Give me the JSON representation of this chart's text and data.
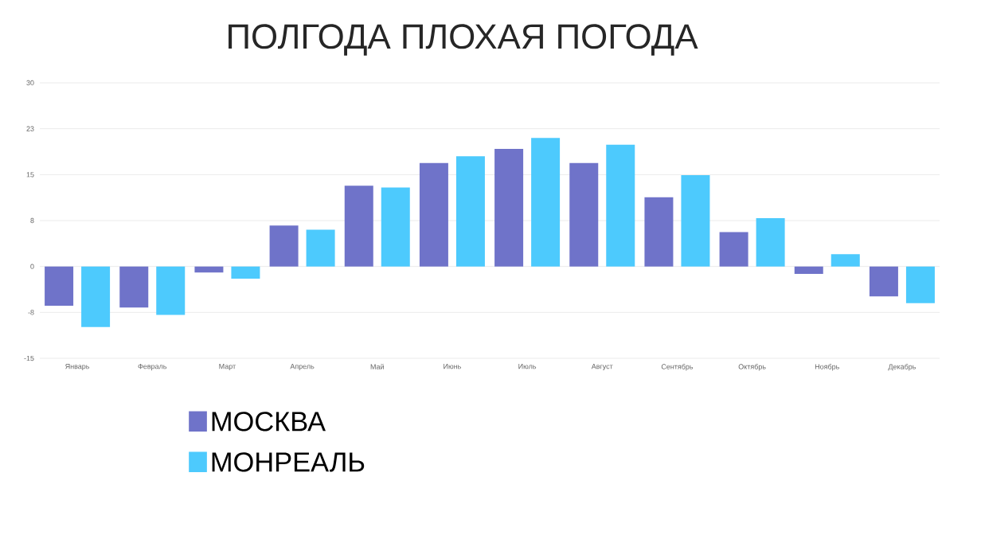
{
  "chart_data": {
    "type": "bar",
    "title": "ПОЛГОДА ПЛОХАЯ ПОГОДА",
    "categories": [
      "Январь",
      "Февраль",
      "Март",
      "Апрель",
      "Май",
      "Июнь",
      "Июль",
      "Август",
      "Сентябрь",
      "Октябрь",
      "Ноябрь",
      "Декабрь"
    ],
    "series": [
      {
        "name": "МОСКВА",
        "color": "#6f73c9",
        "values": [
          -6.4,
          -6.7,
          -1.0,
          6.7,
          13.2,
          16.9,
          19.2,
          16.9,
          11.3,
          5.6,
          -1.2,
          -4.9
        ]
      },
      {
        "name": "МОНРЕАЛЬ",
        "color": "#4dcafd",
        "values": [
          -9.9,
          -7.9,
          -2.0,
          6.0,
          12.9,
          18.0,
          21.0,
          19.9,
          14.9,
          7.9,
          2.0,
          -6.0
        ]
      }
    ],
    "ylim": [
      -15,
      30
    ],
    "yticks": [
      -15,
      {
        "value": -7.5,
        "label": "-8"
      },
      0,
      {
        "value": 7.5,
        "label": "8"
      },
      15,
      {
        "value": 22.5,
        "label": "23"
      },
      30
    ],
    "grid": "y",
    "legend": "bottom"
  }
}
